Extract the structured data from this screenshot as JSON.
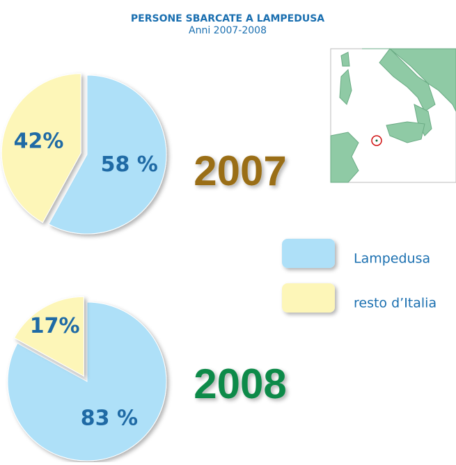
{
  "header": {
    "title": "PERSONE SBARCATE A LAMPEDUSA",
    "subtitle": "Anni 2007-2008"
  },
  "chart_data": [
    {
      "type": "pie",
      "title": "2007",
      "title_color": "#9a6e12",
      "categories": [
        "Lampedusa",
        "resto d’Italia"
      ],
      "values": [
        58,
        42
      ],
      "value_labels": [
        "58 %",
        "42%"
      ],
      "colors": [
        "#aee0f8",
        "#fdf6b8"
      ],
      "explode": [
        false,
        true
      ]
    },
    {
      "type": "pie",
      "title": "2008",
      "title_color": "#108a48",
      "categories": [
        "Lampedusa",
        "resto d’Italia"
      ],
      "values": [
        83,
        17
      ],
      "value_labels": [
        "83 %",
        "17%"
      ],
      "colors": [
        "#aee0f8",
        "#fdf6b8"
      ],
      "explode": [
        false,
        true
      ]
    }
  ]
}
